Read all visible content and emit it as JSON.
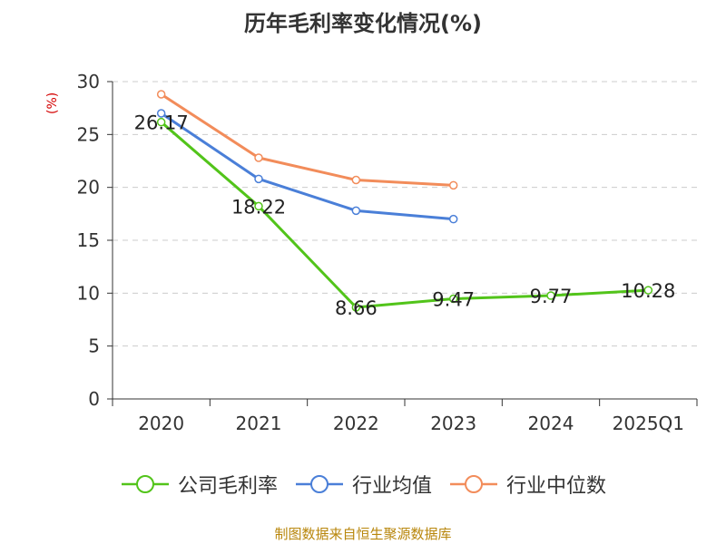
{
  "chart_data": {
    "type": "line",
    "title": "历年毛利率变化情况(%)",
    "ylabel": "(%)",
    "categories": [
      "2020",
      "2021",
      "2022",
      "2023",
      "2024",
      "2025Q1"
    ],
    "ylim": [
      0,
      30
    ],
    "yticks": [
      "0",
      "5",
      "10",
      "15",
      "20",
      "25",
      "30"
    ],
    "grid": "horizontal-dashed",
    "legend_position": "bottom",
    "series": [
      {
        "name": "公司毛利率",
        "color": "#52c41a",
        "values": [
          26.17,
          18.22,
          8.66,
          9.47,
          9.77,
          10.28
        ],
        "labels": [
          "26.17",
          "18.22",
          "8.66",
          "9.47",
          "9.77",
          "10.28"
        ]
      },
      {
        "name": "行业均值",
        "color": "#4a7fd8",
        "values": [
          27.0,
          20.8,
          17.8,
          17.0,
          null,
          null
        ],
        "labels": []
      },
      {
        "name": "行业中位数",
        "color": "#f28c5a",
        "values": [
          28.8,
          22.8,
          20.7,
          20.2,
          null,
          null
        ],
        "labels": []
      }
    ]
  },
  "footer": {
    "source": "制图数据来自恒生聚源数据库"
  }
}
